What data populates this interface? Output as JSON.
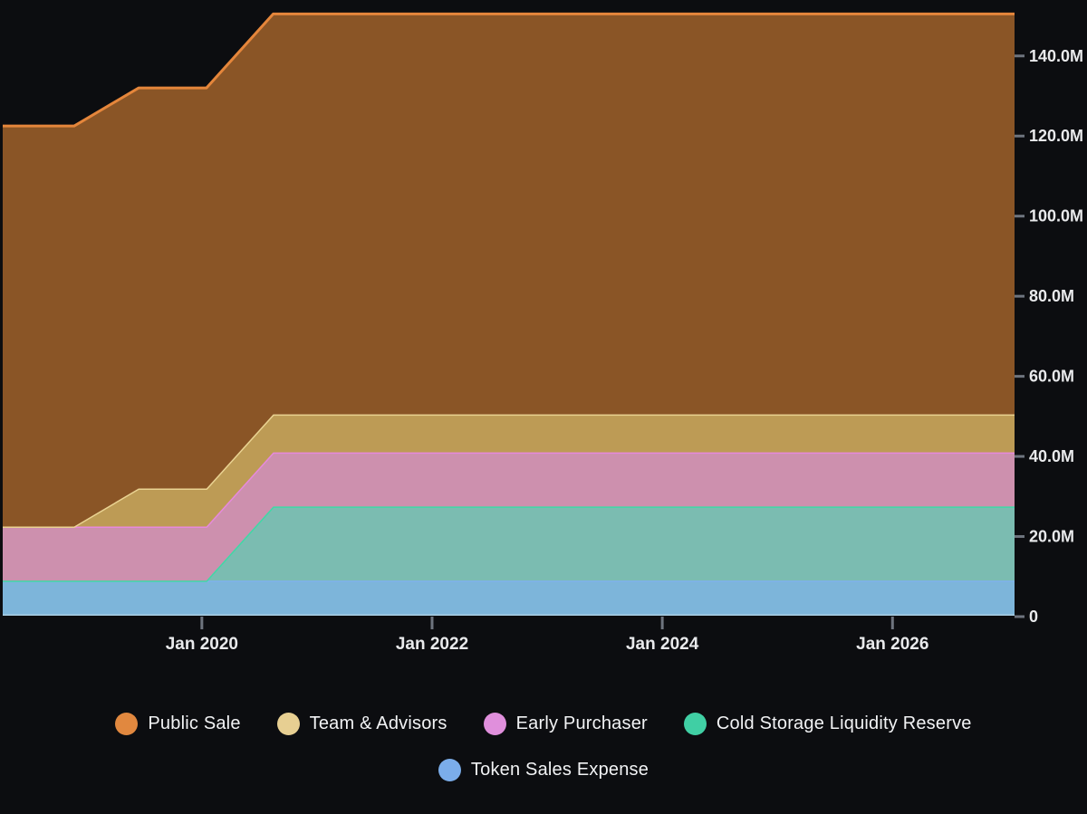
{
  "chart_data": {
    "type": "area",
    "stacked": true,
    "title": "",
    "x_unit": "decimal_year",
    "x": [
      2018.27,
      2018.89,
      2019.45,
      2020.04,
      2020.62,
      2027.06
    ],
    "series": [
      {
        "name": "Token Sales Expense",
        "key": "token-sales-expense",
        "values": [
          9,
          9,
          9,
          9,
          9,
          9
        ],
        "fill": "#7db5da",
        "stroke": "#7fb1ec"
      },
      {
        "name": "Cold Storage Liquidity Reserve",
        "key": "cold-storage-liquidity-reserve",
        "values": [
          0,
          0,
          0,
          0,
          18.5,
          18.5
        ],
        "fill": "#7bbcb1",
        "stroke": "#3fd9a6"
      },
      {
        "name": "Early Purchaser",
        "key": "early-purchaser",
        "values": [
          13.5,
          13.5,
          13.5,
          13.5,
          13.5,
          13.5
        ],
        "fill": "#cd90ae",
        "stroke": "#e689dd"
      },
      {
        "name": "Team & Advisors",
        "key": "team-advisors",
        "values": [
          0,
          0,
          9.5,
          9.5,
          9.5,
          9.5
        ],
        "fill": "#bd9b55",
        "stroke": "#ead392"
      },
      {
        "name": "Public Sale",
        "key": "public-sale",
        "values": [
          100,
          100,
          100,
          100,
          100,
          100
        ],
        "fill": "#8a5526",
        "stroke": "#e5863b"
      }
    ],
    "y_axis": {
      "side": "right",
      "ticks": [
        0,
        20,
        40,
        60,
        80,
        100,
        120,
        140
      ],
      "labels": [
        "0",
        "20.0M",
        "40.0M",
        "60.0M",
        "80.0M",
        "100.0M",
        "120.0M",
        "140.0M"
      ]
    },
    "x_axis": {
      "ticks": [
        2020,
        2022,
        2024,
        2026
      ],
      "labels": [
        "Jan 2020",
        "Jan 2022",
        "Jan 2024",
        "Jan 2026"
      ]
    },
    "xlim": [
      2018.27,
      2027.06
    ],
    "ylim": [
      0,
      153
    ],
    "grid": false,
    "legend_position": "bottom",
    "baseline_color": "#aacfe4"
  },
  "legend": {
    "rows": [
      [
        {
          "key": "public-sale",
          "label": "Public Sale",
          "color": "#e1883f"
        },
        {
          "key": "team-advisors",
          "label": "Team & Advisors",
          "color": "#e7cf92"
        },
        {
          "key": "early-purchaser",
          "label": "Early Purchaser",
          "color": "#e08fdc"
        },
        {
          "key": "cold-storage-liquidity-reserve",
          "label": "Cold Storage Liquidity Reserve",
          "color": "#40cfa4"
        }
      ],
      [
        {
          "key": "token-sales-expense",
          "label": "Token Sales Expense",
          "color": "#7badea"
        }
      ]
    ]
  },
  "colors": {
    "background": "#0c0d10",
    "tick_mark": "#6e747e",
    "axis_label": "#e9eaec"
  }
}
